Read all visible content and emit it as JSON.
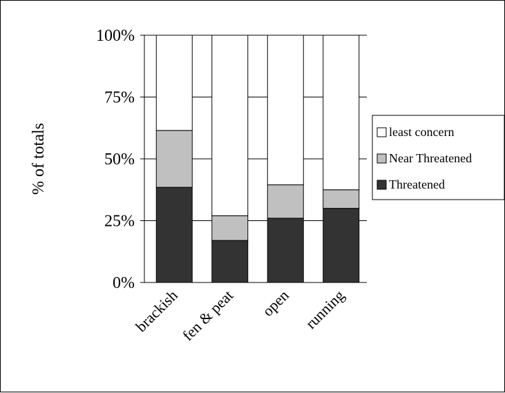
{
  "chart_data": {
    "type": "bar",
    "stacked": true,
    "percent": true,
    "title": "",
    "xlabel": "",
    "ylabel": "% of totals",
    "ylim": [
      0,
      100
    ],
    "yticks": [
      "0%",
      "25%",
      "50%",
      "75%",
      "100%"
    ],
    "grid": true,
    "legend_position": "right",
    "categories": [
      "brackish",
      "fen & peat",
      "open",
      "running"
    ],
    "series": [
      {
        "name": "Threatened",
        "color": "#333333",
        "values": [
          38.5,
          17,
          26,
          30
        ]
      },
      {
        "name": "Near Threatened",
        "color": "#c0c0c0",
        "values": [
          23,
          10,
          13.5,
          7.5
        ]
      },
      {
        "name": "least concern",
        "color": "#ffffff",
        "values": [
          38.5,
          73,
          60.5,
          62.5
        ]
      }
    ],
    "legend_order": [
      "least concern",
      "Near Threatened",
      "Threatened"
    ]
  }
}
